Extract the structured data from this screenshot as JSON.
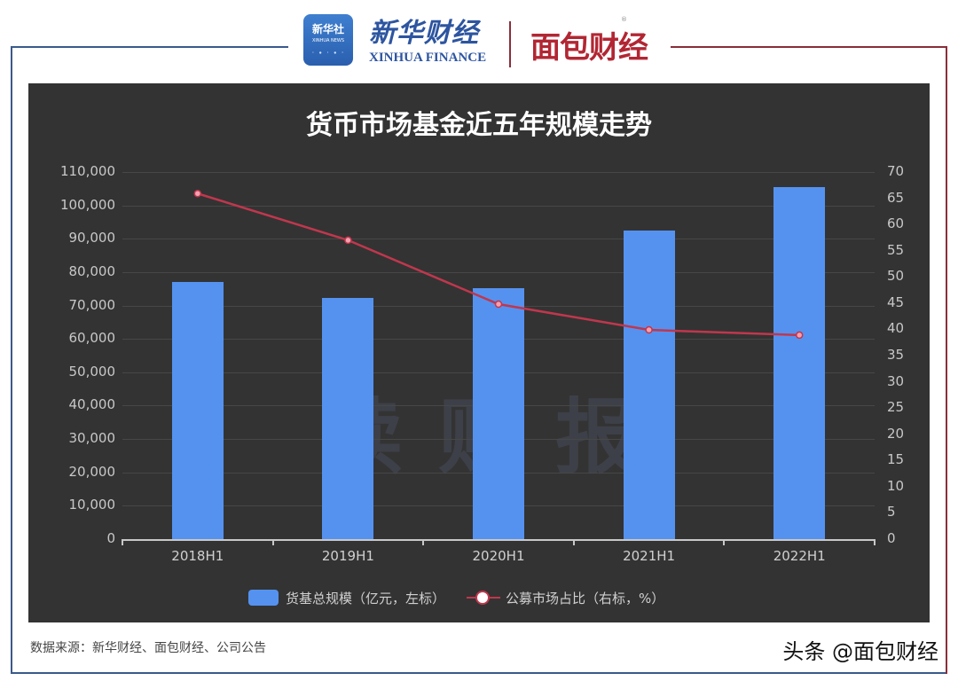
{
  "header": {
    "xinhua_badge": {
      "cn": "新华社",
      "en": "XINHUA NEWS"
    },
    "xinhua_finance": {
      "cn": "新华财经",
      "en": "XINHUA FINANCE"
    },
    "mianbao_logo": "面包财经",
    "mianbao_reg": "®"
  },
  "watermark": "读财报",
  "footer": {
    "source": "数据来源：新华财经、面包财经、公司公告",
    "signature": "头条 @面包财经"
  },
  "colors": {
    "bar": "#5592f0",
    "line": "#c0374d",
    "panel_bg": "#333333",
    "frame_left": "#3a5a8c",
    "frame_right": "#8a2e3a"
  },
  "chart_data": {
    "type": "bar",
    "title": "货币市场基金近五年规模走势",
    "categories": [
      "2018H1",
      "2019H1",
      "2020H1",
      "2021H1",
      "2022H1"
    ],
    "series": [
      {
        "name": "货基总规模（亿元，左标）",
        "type": "bar",
        "axis": "left",
        "values": [
          77000,
          72300,
          75200,
          92500,
          105500
        ]
      },
      {
        "name": "公募市场占比（右标，%）",
        "type": "line",
        "axis": "right",
        "values": [
          65.9,
          57.0,
          44.8,
          39.9,
          38.9
        ]
      }
    ],
    "left_axis": {
      "ylim": [
        0,
        110000
      ],
      "ticks": [
        "0",
        "10,000",
        "20,000",
        "30,000",
        "40,000",
        "50,000",
        "60,000",
        "70,000",
        "80,000",
        "90,000",
        "100,000",
        "110,000"
      ]
    },
    "right_axis": {
      "ylim": [
        0,
        70
      ],
      "ticks": [
        "0",
        "5",
        "10",
        "15",
        "20",
        "25",
        "30",
        "35",
        "40",
        "45",
        "50",
        "55",
        "60",
        "65",
        "70"
      ]
    },
    "xlabel": "",
    "ylabel": "",
    "grid": true,
    "legend_position": "bottom",
    "legend": [
      "货基总规模（亿元，左标）",
      "公募市场占比（右标，%）"
    ]
  }
}
